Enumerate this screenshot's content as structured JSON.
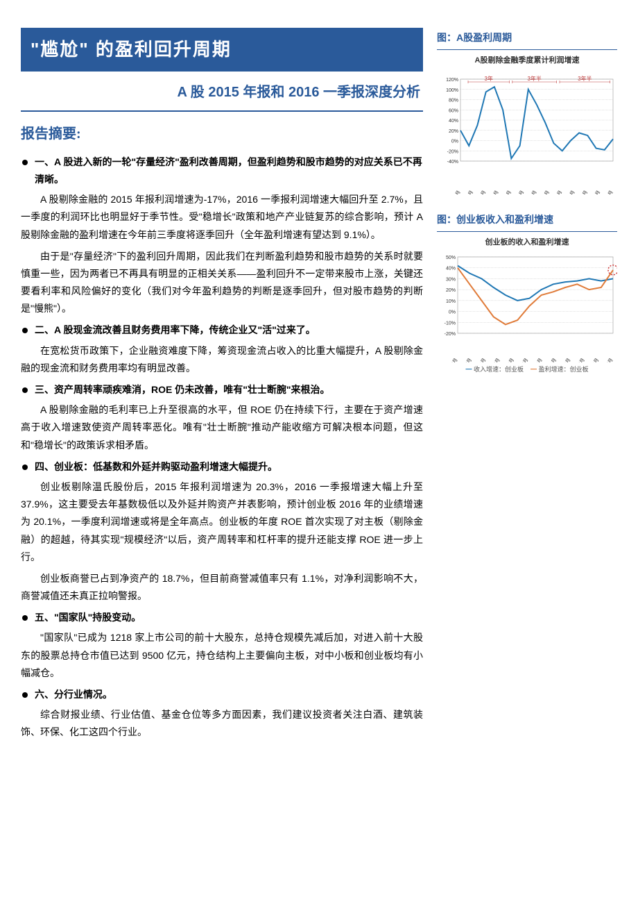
{
  "title": "\"尴尬\" 的盈利回升周期",
  "subtitle": "A 股 2015 年报和 2016 一季报深度分析",
  "abstract_heading": "报告摘要:",
  "sections": [
    {
      "heading": "一、A 股进入新的一轮\"存量经济\"盈利改善周期，但盈利趋势和股市趋势的对应关系已不再清晰。",
      "paras": [
        "A 股剔除金融的 2015 年报利润增速为-17%，2016 一季报利润增速大幅回升至 2.7%，且一季度的利润环比也明显好于季节性。受\"稳增长\"政策和地产产业链复苏的综合影响，预计 A 股剔除金融的盈利增速在今年前三季度将逐季回升（全年盈利增速有望达到 9.1%）。",
        "由于是\"存量经济\"下的盈利回升周期，因此我们在判断盈利趋势和股市趋势的关系时就要慎重一些，因为两者已不再具有明显的正相关关系——盈利回升不一定带来股市上涨，关键还要看利率和风险偏好的变化（我们对今年盈利趋势的判断是逐季回升，但对股市趋势的判断是\"慢熊\"）。"
      ]
    },
    {
      "heading": "二、A 股现金流改善且财务费用率下降，传统企业又\"活\"过来了。",
      "paras": [
        "在宽松货币政策下，企业融资难度下降，筹资现金流占收入的比重大幅提升，A 股剔除金融的现金流和财务费用率均有明显改善。"
      ]
    },
    {
      "heading": "三、资产周转率顽疾难消，ROE 仍未改善，唯有\"壮士断腕\"来根治。",
      "paras": [
        "A 股剔除金融的毛利率已上升至很高的水平，但 ROE 仍在持续下行，主要在于资产增速高于收入增速致使资产周转率恶化。唯有\"壮士断腕\"推动产能收缩方可解决根本问题，但这和\"稳增长\"的政策诉求相矛盾。"
      ]
    },
    {
      "heading": "四、创业板：低基数和外延并购驱动盈利增速大幅提升。",
      "paras": [
        "创业板剔除温氏股份后，2015 年报利润增速为 20.3%，2016 一季报增速大幅上升至 37.9%，这主要受去年基数极低以及外延并购资产并表影响，预计创业板 2016 年的业绩增速为 20.1%，一季度利润增速或将是全年高点。创业板的年度 ROE 首次实现了对主板（剔除金融）的超越，待其实现\"规模经济\"以后，资产周转率和杠杆率的提升还能支撑 ROE 进一步上行。",
        "创业板商誉已占到净资产的 18.7%，但目前商誉减值率只有 1.1%，对净利润影响不大，商誉减值还未真正拉响警报。"
      ]
    },
    {
      "heading": "五、\"国家队\"持股变动。",
      "paras": [
        "\"国家队\"已成为 1218 家上市公司的前十大股东，总持仓规模先减后加，对进入前十大股东的股票总持仓市值已达到 9500 亿元，持仓结构上主要偏向主板，对中小板和创业板均有小幅减仓。"
      ]
    },
    {
      "heading": "六、分行业情况。",
      "paras": [
        "综合财报业绩、行业估值、基金仓位等多方面因素，我们建议投资者关注白酒、建筑装饰、环保、化工这四个行业。"
      ]
    }
  ],
  "fig1": {
    "caption": "图：A股盈利周期",
    "inner_title": "A股剔除金融季度累计利润增速",
    "annotations": [
      "3年",
      "3年半",
      "3年半"
    ],
    "type": "line",
    "x_labels": [
      "2004年3月",
      "2005年3月",
      "2006年3月",
      "2007年3月",
      "2008年3月",
      "2009年3月",
      "2010年3月",
      "2011年3月",
      "2012年3月",
      "2013年3月",
      "2014年3月",
      "2015年3月",
      "2016年3月"
    ],
    "ylim": [
      -40,
      120
    ],
    "yticks": [
      -40,
      -20,
      0,
      20,
      40,
      60,
      80,
      100,
      120
    ],
    "series": {
      "color": "#1f77b4",
      "width": 2,
      "values": [
        20,
        -10,
        30,
        95,
        105,
        60,
        -35,
        -10,
        100,
        70,
        35,
        -5,
        -20,
        0,
        15,
        10,
        -15,
        -18,
        3
      ]
    },
    "grid_color": "#999999",
    "background": "#ffffff",
    "annot_color": "#c04040",
    "label_fontsize": 8,
    "tick_fontsize": 7
  },
  "fig2": {
    "caption": "图：创业板收入和盈利增速",
    "inner_title": "创业板的收入和盈利增速",
    "type": "line",
    "x_labels": [
      "2010年3月",
      "2011年3月",
      "2011年9月",
      "2012年3月",
      "2012年9月",
      "2013年3月",
      "2013年9月",
      "2014年3月",
      "2014年9月",
      "2015年3月",
      "2015年9月",
      "2016年3月"
    ],
    "ylim": [
      -20,
      50
    ],
    "yticks": [
      -20,
      -10,
      0,
      10,
      20,
      30,
      40,
      50
    ],
    "series1": {
      "name": "收入增速：创业板",
      "color": "#1f77b4",
      "width": 2,
      "values": [
        42,
        35,
        30,
        22,
        15,
        10,
        12,
        20,
        25,
        27,
        28,
        30,
        28,
        30
      ]
    },
    "series2": {
      "name": "盈利增速：创业板",
      "color": "#e07b39",
      "width": 2,
      "values": [
        40,
        25,
        10,
        -5,
        -12,
        -8,
        5,
        15,
        18,
        22,
        25,
        20,
        22,
        38
      ]
    },
    "circle_color": "#cc3333",
    "grid_color": "#999999",
    "background": "#ffffff",
    "label_fontsize": 8,
    "tick_fontsize": 7
  }
}
